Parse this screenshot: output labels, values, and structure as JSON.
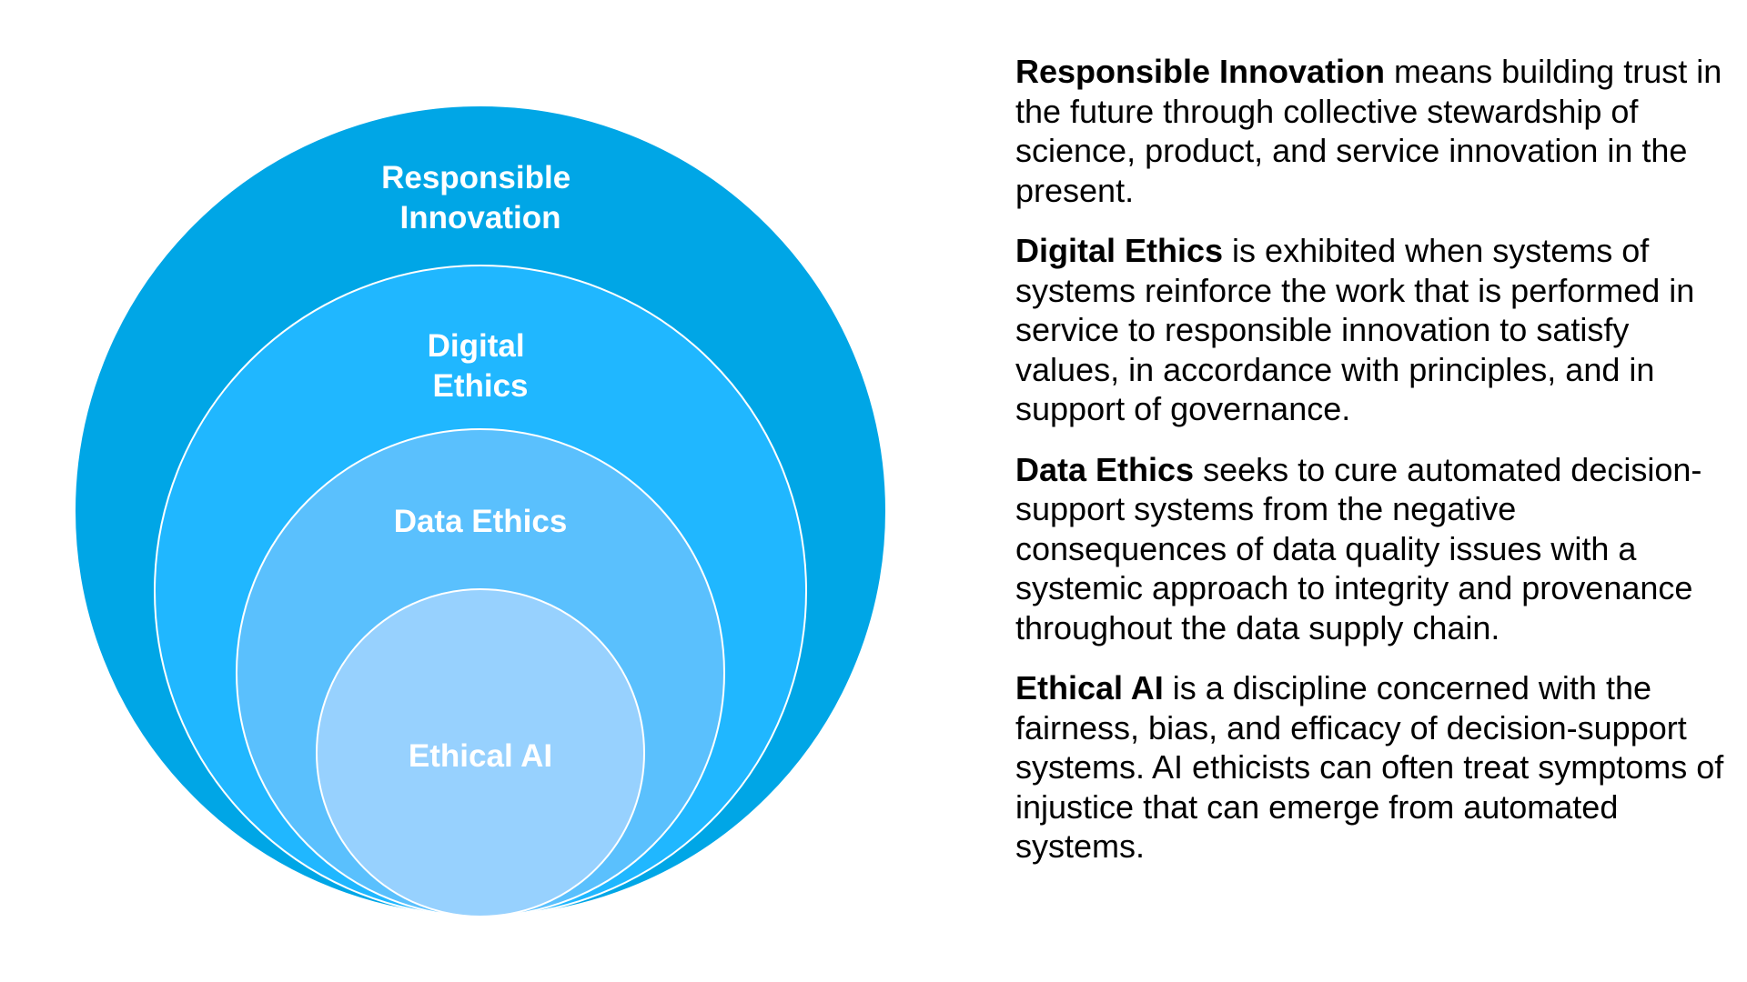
{
  "diagram": {
    "layers": [
      {
        "lines": [
          "Responsible",
          "Innovation"
        ],
        "color": "#00a6e6"
      },
      {
        "lines": [
          "Digital",
          "Ethics"
        ],
        "color": "#20b7ff"
      },
      {
        "lines": [
          "Data Ethics"
        ],
        "color": "#5ac0fd"
      },
      {
        "lines": [
          "Ethical AI"
        ],
        "color": "#97d1fe"
      }
    ]
  },
  "descriptions": [
    {
      "term": "Responsible Innovation",
      "text": " means building trust in the future through collective stewardship of science, product, and service innovation in the present."
    },
    {
      "term": "Digital Ethics",
      "text": " is exhibited when systems of systems reinforce the work that is performed in service to responsible innovation to satisfy values, in accordance with principles, and in support of governance."
    },
    {
      "term": "Data Ethics",
      "text": " seeks to cure automated decision-support systems from the negative consequences of data quality issues with a systemic approach to integrity and provenance throughout the data supply chain."
    },
    {
      "term": "Ethical AI",
      "text": " is a discipline concerned with the fairness, bias, and efficacy of decision-support systems. AI ethicists can often treat symptoms of injustice that can emerge from automated systems."
    }
  ]
}
